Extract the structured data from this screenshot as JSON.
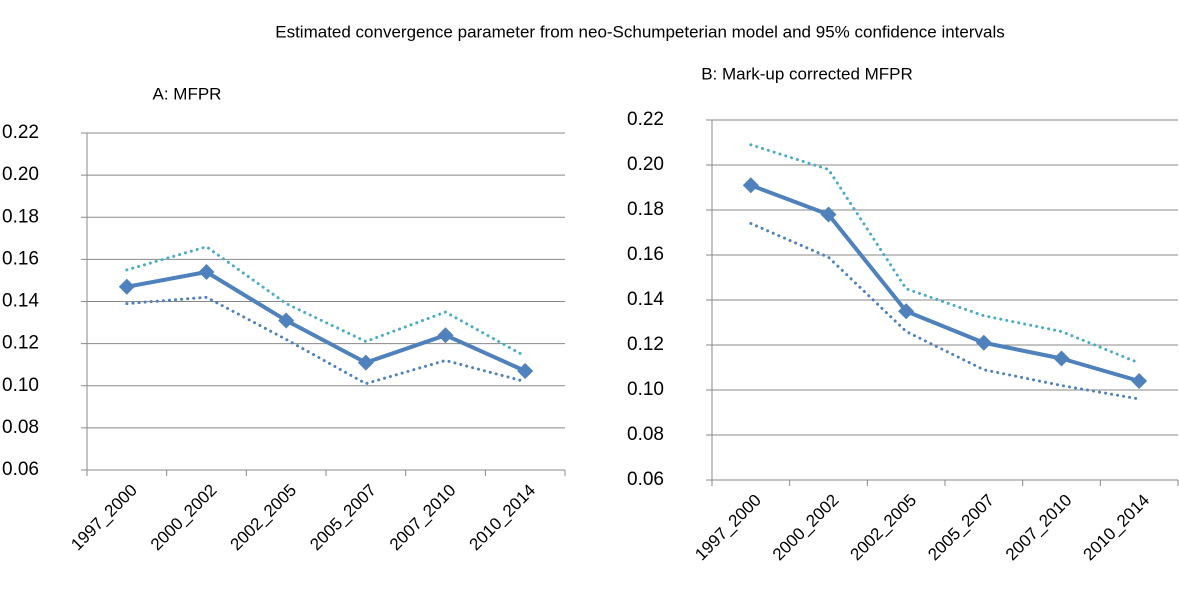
{
  "title": "Estimated convergence parameter from neo-Schumpeterian model and 95% confidence intervals",
  "chart_data": [
    {
      "type": "line",
      "title": "A: MFPR",
      "categories": [
        "1997_2000",
        "2000_2002",
        "2002_2005",
        "2005_2007",
        "2007_2010",
        "2010_2014"
      ],
      "ylim": [
        0.06,
        0.22
      ],
      "yticks": [
        0.06,
        0.08,
        {
          "value": 0.1,
          "label": "0.10"
        },
        0.12,
        0.14,
        0.16,
        0.18,
        {
          "value": 0.2,
          "label": "0.20"
        },
        0.22
      ],
      "grid": true,
      "series": [
        {
          "color": "#4bacc6",
          "line_style": "dotted",
          "values": [
            0.155,
            0.166,
            0.139,
            0.121,
            0.135,
            0.114
          ]
        },
        {
          "color": "#4f81bd",
          "line_style": "dotted",
          "values": [
            0.139,
            0.142,
            0.122,
            0.101,
            0.112,
            0.102
          ]
        },
        {
          "color": "#4f81bd",
          "line_style": "solid",
          "marker": "diamond",
          "values": [
            0.147,
            0.154,
            0.131,
            0.111,
            0.124,
            0.107
          ]
        }
      ]
    },
    {
      "type": "line",
      "title": "B: Mark-up corrected MFPR",
      "categories": [
        "1997_2000",
        "2000_2002",
        "2002_2005",
        "2005_2007",
        "2007_2010",
        "2010_2014"
      ],
      "ylim": [
        0.06,
        0.22
      ],
      "yticks": [
        0.06,
        0.08,
        {
          "value": 0.1,
          "label": "0.10"
        },
        0.12,
        0.14,
        0.16,
        0.18,
        {
          "value": 0.2,
          "label": "0.20"
        },
        0.22
      ],
      "grid": true,
      "series": [
        {
          "color": "#4bacc6",
          "line_style": "dotted",
          "values": [
            0.209,
            0.198,
            0.145,
            0.133,
            0.126,
            0.112
          ]
        },
        {
          "color": "#4f81bd",
          "line_style": "dotted",
          "values": [
            0.174,
            0.159,
            0.126,
            0.109,
            0.102,
            0.096
          ]
        },
        {
          "color": "#4f81bd",
          "line_style": "solid",
          "marker": "diamond",
          "values": [
            0.191,
            0.178,
            0.135,
            0.121,
            0.114,
            0.104
          ]
        }
      ]
    }
  ]
}
